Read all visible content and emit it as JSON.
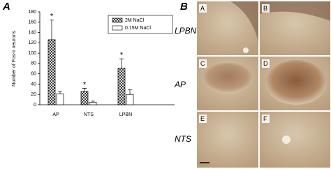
{
  "figure_labels": [
    "A",
    "B"
  ],
  "chart_data": {
    "type": "bar",
    "y_label": "Number of Fos-ir neurons",
    "categories": [
      "AP",
      "NTS",
      "LPBN"
    ],
    "series": [
      {
        "name": "2M NaCl",
        "color": "#ffffff",
        "pattern": "crosshatch",
        "values": [
          126,
          26,
          71
        ],
        "errors": [
          38,
          6,
          18
        ],
        "significance_marks": [
          "*",
          "*",
          "*"
        ]
      },
      {
        "name": "0.15M NaCl",
        "color": "#ffffff",
        "pattern": "none",
        "values": [
          21,
          5,
          20
        ],
        "errors": [
          5,
          2,
          9
        ]
      }
    ],
    "ylim": [
      0,
      180
    ],
    "yticks": [
      0,
      20,
      40,
      60,
      80,
      100,
      120,
      140,
      160,
      180
    ],
    "grid": false,
    "legend": "upper right"
  },
  "micrographs": {
    "row_labels": [
      "LPBN",
      "AP",
      "NTS"
    ],
    "panel_labels": [
      "A",
      "B",
      "C",
      "D",
      "E",
      "F"
    ]
  }
}
